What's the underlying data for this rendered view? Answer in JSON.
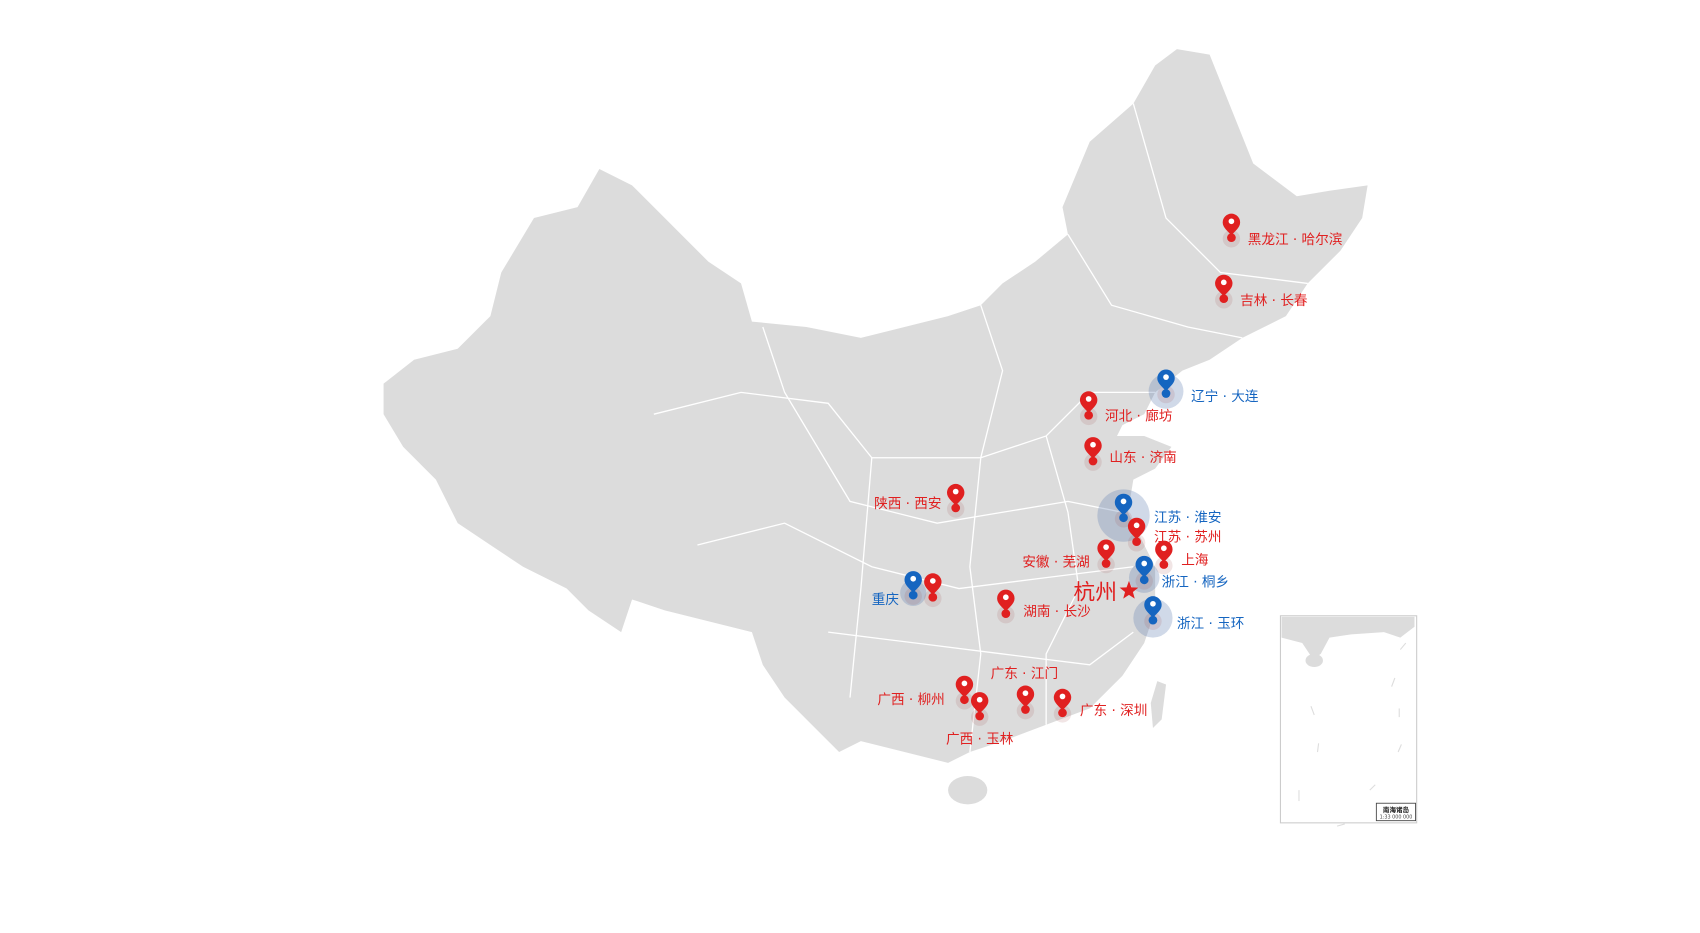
{
  "map": {
    "land_color": "#dcdcdc",
    "border_color": "#ffffff",
    "red_color": "#e02020",
    "blue_color": "#1565c0",
    "hq": {
      "label": "杭州",
      "icon": "star-icon"
    },
    "markers": [
      {
        "label": "黑龙江 · 哈尔滨",
        "type": "red"
      },
      {
        "label": "吉林 · 长春",
        "type": "red"
      },
      {
        "label": "辽宁 · 大连",
        "type": "blue"
      },
      {
        "label": "河北 · 廊坊",
        "type": "red"
      },
      {
        "label": "山东 · 济南",
        "type": "red"
      },
      {
        "label": "陕西 · 西安",
        "type": "red"
      },
      {
        "label": "江苏 · 淮安",
        "type": "blue"
      },
      {
        "label": "江苏 · 苏州",
        "type": "red"
      },
      {
        "label": "上海",
        "type": "red"
      },
      {
        "label": "安徽 · 芜湖",
        "type": "red"
      },
      {
        "label": "浙江 · 桐乡",
        "type": "blue"
      },
      {
        "label": "浙江 · 玉环",
        "type": "blue"
      },
      {
        "label": "重庆",
        "type": "blue"
      },
      {
        "label": "",
        "type": "red"
      },
      {
        "label": "湖南 · 长沙",
        "type": "red"
      },
      {
        "label": "广东 · 江门",
        "type": "red"
      },
      {
        "label": "广西 · 柳州",
        "type": "red"
      },
      {
        "label": "广西 · 玉林",
        "type": "red"
      },
      {
        "label": "广东 · 深圳",
        "type": "red"
      }
    ],
    "inset": {
      "title": "南海诸岛",
      "scale": "1:33 000 000"
    }
  }
}
